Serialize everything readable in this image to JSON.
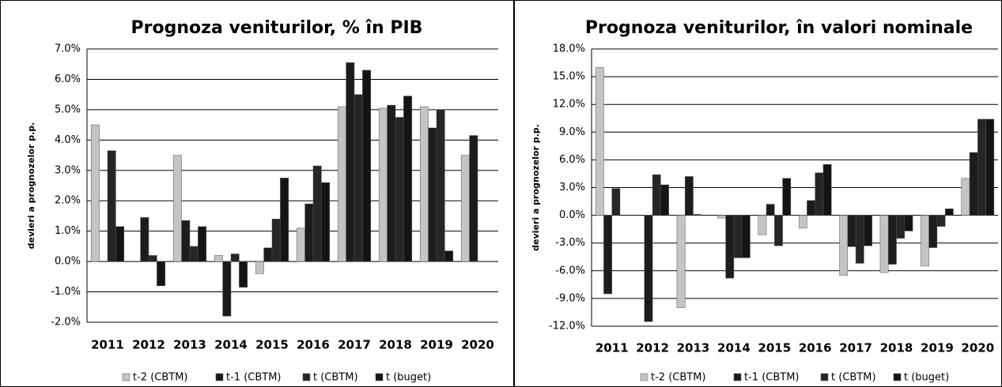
{
  "chart_data": [
    {
      "type": "bar",
      "title": "Prognoza veniturilor, % în PIB",
      "y_label": "devieri a prognozelor p.p.",
      "categories": [
        "2011",
        "2012",
        "2013",
        "2014",
        "2015",
        "2016",
        "2017",
        "2018",
        "2019",
        "2020"
      ],
      "series": [
        {
          "name": "t-2 (CBTM)",
          "color": "#c4c4c4",
          "values": [
            4.5,
            0,
            3.5,
            0.2,
            -0.4,
            1.1,
            5.1,
            5.05,
            5.1,
            3.5
          ]
        },
        {
          "name": "t-1 (CBTM)",
          "color": "#1c1c1c",
          "values": [
            0,
            1.45,
            1.35,
            -1.8,
            0.45,
            1.9,
            6.55,
            5.15,
            4.4,
            4.15
          ]
        },
        {
          "name": "t (CBTM)",
          "color": "#262626",
          "values": [
            3.65,
            0.2,
            0.5,
            0.25,
            1.4,
            3.15,
            5.5,
            4.75,
            5.0,
            null
          ]
        },
        {
          "name": "t (buget)",
          "color": "#141414",
          "values": [
            1.15,
            -0.8,
            1.15,
            -0.85,
            2.75,
            2.6,
            6.3,
            5.45,
            0.35,
            null
          ]
        }
      ],
      "ylim": [
        -2,
        7
      ],
      "yticks": [
        {
          "value": -2,
          "label": "-2.0%"
        },
        {
          "value": -1,
          "label": "-1.0%"
        },
        {
          "value": 0,
          "label": "0.0%"
        },
        {
          "value": 1,
          "label": "1.0%"
        },
        {
          "value": 2,
          "label": "2.0%"
        },
        {
          "value": 3,
          "label": "3.0%"
        },
        {
          "value": 4,
          "label": "4.0%"
        },
        {
          "value": 5,
          "label": "5.0%"
        },
        {
          "value": 6,
          "label": "6.0%"
        },
        {
          "value": 7,
          "label": "7.0%"
        }
      ],
      "grid": true
    },
    {
      "type": "bar",
      "title": "Prognoza veniturilor, în valori nominale",
      "y_label": "devieri a prognozelor p.p.",
      "categories": [
        "2011",
        "2012",
        "2013",
        "2014",
        "2015",
        "2016",
        "2017",
        "2018",
        "2019",
        "2020"
      ],
      "series": [
        {
          "name": "t-2 (CBTM)",
          "color": "#c4c4c4",
          "values": [
            16,
            0,
            -10,
            -0.3,
            -2.1,
            -1.4,
            -6.5,
            -6.2,
            -5.5,
            4.0
          ]
        },
        {
          "name": "t-1 (CBTM)",
          "color": "#1c1c1c",
          "values": [
            -8.5,
            -11.5,
            4.2,
            -6.8,
            1.2,
            1.6,
            -3.4,
            -5.3,
            -3.5,
            6.8
          ]
        },
        {
          "name": "t (CBTM)",
          "color": "#262626",
          "values": [
            2.9,
            4.4,
            0.1,
            -4.6,
            -3.3,
            4.6,
            -5.2,
            -2.5,
            -1.2,
            10.4
          ]
        },
        {
          "name": "t (buget)",
          "color": "#141414",
          "values": [
            0,
            3.3,
            0,
            -4.6,
            4.0,
            5.5,
            -3.3,
            -1.7,
            0.7,
            10.4
          ]
        }
      ],
      "ylim": [
        -12,
        18
      ],
      "yticks": [
        {
          "value": -12,
          "label": "-12.0%"
        },
        {
          "value": -9,
          "label": "-9.0%"
        },
        {
          "value": -6,
          "label": "-6.0%"
        },
        {
          "value": -3,
          "label": "-3.0%"
        },
        {
          "value": 0,
          "label": "0.0%"
        },
        {
          "value": 3,
          "label": "3.0%"
        },
        {
          "value": 6,
          "label": "6.0%"
        },
        {
          "value": 9,
          "label": "9.0%"
        },
        {
          "value": 12,
          "label": "12.0%"
        },
        {
          "value": 15,
          "label": "15.0%"
        },
        {
          "value": 18,
          "label": "18.0%"
        }
      ],
      "grid": true
    }
  ]
}
